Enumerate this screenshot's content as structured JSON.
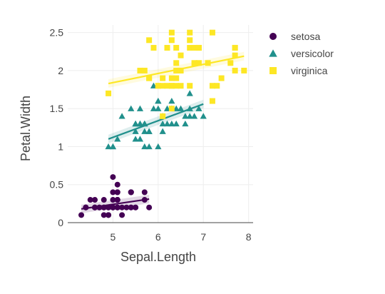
{
  "chart_data": {
    "type": "scatter",
    "title": "",
    "xlabel": "Sepal.Length",
    "ylabel": "Petal.Width",
    "xlim": [
      4.0,
      8.1
    ],
    "ylim": [
      0,
      2.6
    ],
    "xticks": [
      5,
      6,
      7,
      8
    ],
    "yticks": [
      0,
      0.5,
      1,
      1.5,
      2,
      2.5
    ],
    "ytick_labels": [
      "0",
      "0.5",
      "1",
      "1.5",
      "2",
      "2.5"
    ],
    "grid": true,
    "legend_position": "top-right",
    "series": [
      {
        "name": "setosa",
        "marker": "circle",
        "color": "#440154",
        "points": [
          [
            4.3,
            0.1
          ],
          [
            4.4,
            0.2
          ],
          [
            4.4,
            0.2
          ],
          [
            4.4,
            0.2
          ],
          [
            4.5,
            0.3
          ],
          [
            4.6,
            0.2
          ],
          [
            4.6,
            0.3
          ],
          [
            4.6,
            0.2
          ],
          [
            4.6,
            0.2
          ],
          [
            4.7,
            0.2
          ],
          [
            4.7,
            0.2
          ],
          [
            4.8,
            0.2
          ],
          [
            4.8,
            0.2
          ],
          [
            4.8,
            0.1
          ],
          [
            4.8,
            0.3
          ],
          [
            4.8,
            0.2
          ],
          [
            4.9,
            0.2
          ],
          [
            4.9,
            0.1
          ],
          [
            4.9,
            0.2
          ],
          [
            4.9,
            0.1
          ],
          [
            5.0,
            0.2
          ],
          [
            5.0,
            0.2
          ],
          [
            5.0,
            0.4
          ],
          [
            5.0,
            0.2
          ],
          [
            5.0,
            0.6
          ],
          [
            5.0,
            0.3
          ],
          [
            5.0,
            0.2
          ],
          [
            5.0,
            0.2
          ],
          [
            5.1,
            0.2
          ],
          [
            5.1,
            0.4
          ],
          [
            5.1,
            0.3
          ],
          [
            5.1,
            0.3
          ],
          [
            5.1,
            0.2
          ],
          [
            5.1,
            0.4
          ],
          [
            5.1,
            0.5
          ],
          [
            5.1,
            0.2
          ],
          [
            5.1,
            0.3
          ],
          [
            5.2,
            0.2
          ],
          [
            5.2,
            0.1
          ],
          [
            5.3,
            0.2
          ],
          [
            5.4,
            0.2
          ],
          [
            5.4,
            0.4
          ],
          [
            5.4,
            0.4
          ],
          [
            5.4,
            0.2
          ],
          [
            5.4,
            0.4
          ],
          [
            5.5,
            0.2
          ],
          [
            5.5,
            0.2
          ],
          [
            5.7,
            0.4
          ],
          [
            5.7,
            0.3
          ],
          [
            5.8,
            0.2
          ]
        ],
        "trend": [
          [
            4.3,
            0.18
          ],
          [
            5.8,
            0.31
          ]
        ]
      },
      {
        "name": "versicolor",
        "marker": "triangle",
        "color": "#21908c",
        "points": [
          [
            4.9,
            1.0
          ],
          [
            5.0,
            1.0
          ],
          [
            5.0,
            1.0
          ],
          [
            5.1,
            1.1
          ],
          [
            5.2,
            1.4
          ],
          [
            5.4,
            1.5
          ],
          [
            5.5,
            1.3
          ],
          [
            5.5,
            1.3
          ],
          [
            5.5,
            1.1
          ],
          [
            5.5,
            1.2
          ],
          [
            5.5,
            1.3
          ],
          [
            5.6,
            1.3
          ],
          [
            5.6,
            1.5
          ],
          [
            5.6,
            1.3
          ],
          [
            5.6,
            1.1
          ],
          [
            5.6,
            1.3
          ],
          [
            5.7,
            1.3
          ],
          [
            5.7,
            1.0
          ],
          [
            5.7,
            1.2
          ],
          [
            5.7,
            1.3
          ],
          [
            5.7,
            1.3
          ],
          [
            5.8,
            1.0
          ],
          [
            5.8,
            1.2
          ],
          [
            5.8,
            1.2
          ],
          [
            5.9,
            1.5
          ],
          [
            5.9,
            1.8
          ],
          [
            6.0,
            1.0
          ],
          [
            6.0,
            1.6
          ],
          [
            6.0,
            1.5
          ],
          [
            6.0,
            1.6
          ],
          [
            6.1,
            1.3
          ],
          [
            6.1,
            1.4
          ],
          [
            6.1,
            1.2
          ],
          [
            6.1,
            1.4
          ],
          [
            6.2,
            1.5
          ],
          [
            6.2,
            1.3
          ],
          [
            6.3,
            1.6
          ],
          [
            6.3,
            1.5
          ],
          [
            6.3,
            1.3
          ],
          [
            6.4,
            1.5
          ],
          [
            6.4,
            1.3
          ],
          [
            6.5,
            1.5
          ],
          [
            6.6,
            1.4
          ],
          [
            6.6,
            1.3
          ],
          [
            6.7,
            1.4
          ],
          [
            6.7,
            1.5
          ],
          [
            6.7,
            1.7
          ],
          [
            6.8,
            1.4
          ],
          [
            6.9,
            1.5
          ],
          [
            7.0,
            1.4
          ]
        ],
        "trend": [
          [
            4.9,
            1.1
          ],
          [
            7.0,
            1.56
          ]
        ]
      },
      {
        "name": "virginica",
        "marker": "square",
        "color": "#fde725",
        "points": [
          [
            4.9,
            1.7
          ],
          [
            5.6,
            2.0
          ],
          [
            5.7,
            2.0
          ],
          [
            5.8,
            1.9
          ],
          [
            5.8,
            2.4
          ],
          [
            5.8,
            1.9
          ],
          [
            5.9,
            2.3
          ],
          [
            6.0,
            1.8
          ],
          [
            6.0,
            1.8
          ],
          [
            6.1,
            1.9
          ],
          [
            6.1,
            1.8
          ],
          [
            6.2,
            1.8
          ],
          [
            6.2,
            2.3
          ],
          [
            6.3,
            2.5
          ],
          [
            6.3,
            1.9
          ],
          [
            6.3,
            1.8
          ],
          [
            6.3,
            1.8
          ],
          [
            6.3,
            2.4
          ],
          [
            6.3,
            1.5
          ],
          [
            6.4,
            2.0
          ],
          [
            6.4,
            1.8
          ],
          [
            6.4,
            2.3
          ],
          [
            6.4,
            2.1
          ],
          [
            6.4,
            1.9
          ],
          [
            6.5,
            2.0
          ],
          [
            6.5,
            2.2
          ],
          [
            6.5,
            1.8
          ],
          [
            6.5,
            2.0
          ],
          [
            6.7,
            2.5
          ],
          [
            6.7,
            1.8
          ],
          [
            6.7,
            2.4
          ],
          [
            6.7,
            2.3
          ],
          [
            6.8,
            2.1
          ],
          [
            6.8,
            2.3
          ],
          [
            6.9,
            2.3
          ],
          [
            6.9,
            2.1
          ],
          [
            6.9,
            2.3
          ],
          [
            7.1,
            2.1
          ],
          [
            7.2,
            2.5
          ],
          [
            7.2,
            1.8
          ],
          [
            7.2,
            1.6
          ],
          [
            7.3,
            1.8
          ],
          [
            7.4,
            1.9
          ],
          [
            7.6,
            2.1
          ],
          [
            7.7,
            2.2
          ],
          [
            7.7,
            2.3
          ],
          [
            7.7,
            2.0
          ],
          [
            7.7,
            2.3
          ],
          [
            7.9,
            2.0
          ],
          [
            6.1,
            1.4
          ]
        ],
        "trend": [
          [
            4.9,
            1.83
          ],
          [
            7.9,
            2.19
          ]
        ]
      }
    ]
  }
}
